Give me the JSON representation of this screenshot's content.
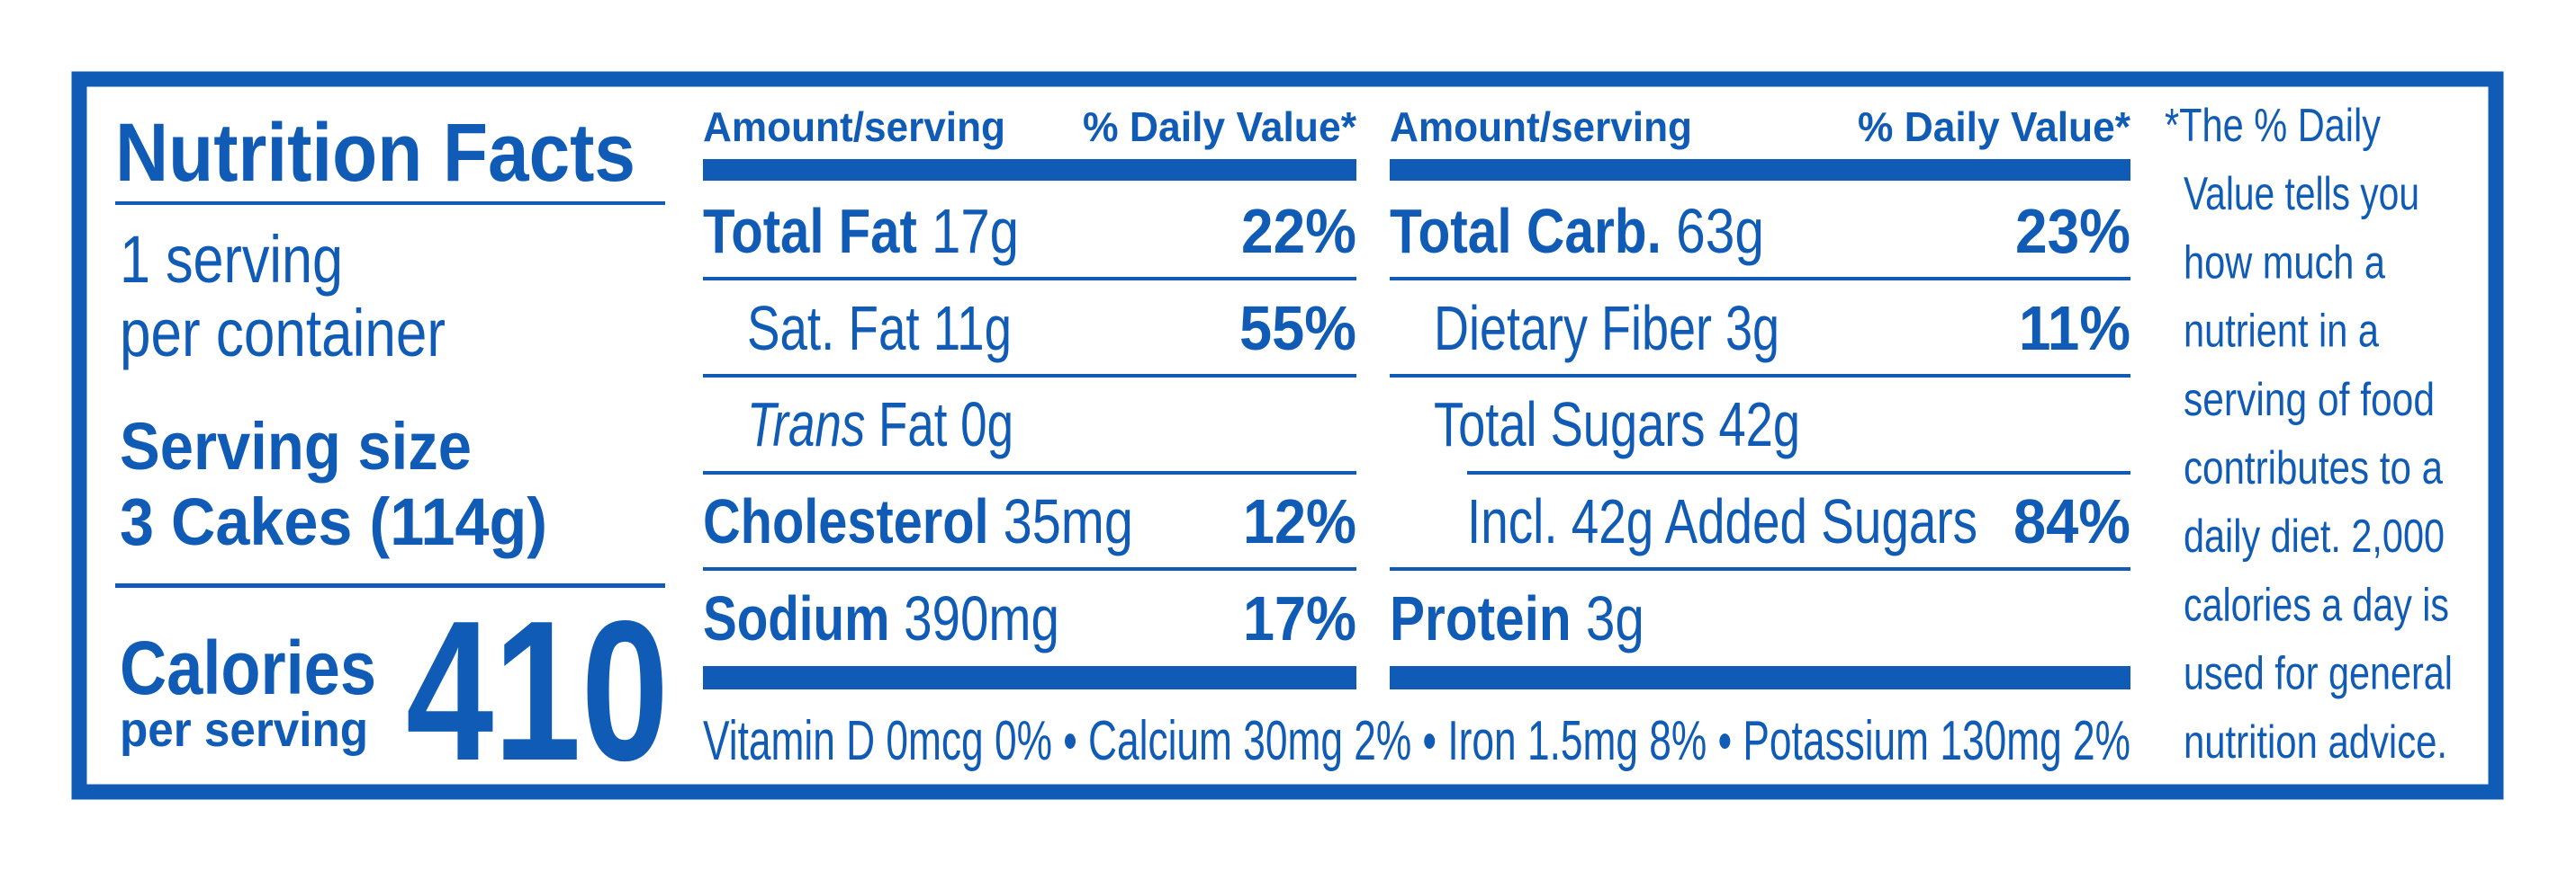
{
  "label": {
    "title": "Nutrition Facts",
    "servings_per_container": [
      "1 serving",
      "per container"
    ],
    "serving_size_label": "Serving size",
    "serving_size": "3 Cakes (114g)",
    "calories_label": "Calories",
    "calories_sublabel": "per serving",
    "calories": 410,
    "columns": [
      {
        "amount_header": "Amount/serving",
        "dv_header": "% Daily Value*",
        "rows": [
          {
            "name": "Total Fat",
            "amount": "17g",
            "dv": "22%"
          },
          {
            "amount": "Sat. Fat 11g",
            "dv": "55%"
          },
          {
            "name": "Trans",
            "amount": "Fat 0g"
          },
          {
            "name": "Cholesterol",
            "amount": "35mg",
            "dv": "12%"
          },
          {
            "name": "Sodium",
            "amount": "390mg",
            "dv": "17%"
          }
        ]
      },
      {
        "amount_header": "Amount/serving",
        "dv_header": "% Daily Value*",
        "rows": [
          {
            "name": "Total Carb.",
            "amount": "63g",
            "dv": "23%"
          },
          {
            "amount": "Dietary Fiber 3g",
            "dv": "11%"
          },
          {
            "amount": "Total Sugars 42g"
          },
          {
            "amount": "Incl. 42g Added Sugars",
            "dv": "84%"
          },
          {
            "name": "Protein",
            "amount": "3g"
          }
        ]
      }
    ],
    "vitamins": "Vitamin D 0mcg 0% • Calcium 30mg 2% • Iron 1.5mg 8% • Potassium 130mg 2%",
    "footnote": [
      "*The % Daily",
      "Value tells you",
      "how much a",
      "nutrient in a",
      "serving of food",
      "contributes to a",
      "daily diet. 2,000",
      "calories a day is",
      "used for general",
      "nutrition advice."
    ]
  }
}
